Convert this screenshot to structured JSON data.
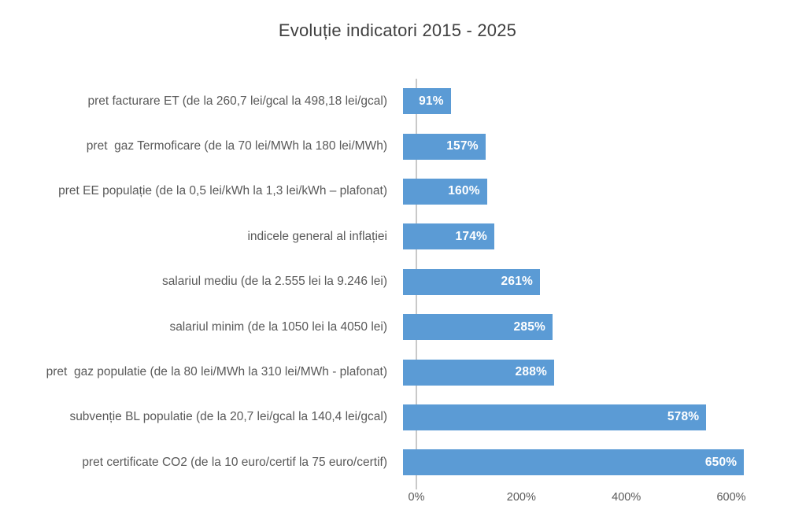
{
  "chart_data": {
    "type": "bar",
    "orientation": "horizontal",
    "title": "Evoluție indicatori 2015 - 2025",
    "categories": [
      "pret facturare ET (de la 260,7 lei/gcal la 498,18 lei/gcal)",
      "pret  gaz Termoficare (de la 70 lei/MWh la 180 lei/MWh)",
      "pret EE populație (de la 0,5 lei/kWh la 1,3 lei/kWh – plafonat)",
      "indicele general al inflației",
      "salariul mediu (de la 2.555 lei la 9.246 lei)",
      "salariul minim (de la 1050 lei la 4050 lei)",
      "pret  gaz populatie (de la 80 lei/MWh la 310 lei/MWh - plafonat)",
      "subvenție BL populatie (de la 20,7 lei/gcal la 140,4 lei/gcal)",
      "pret certificate CO2 (de la 10 euro/certif la 75 euro/certif)"
    ],
    "values": [
      91,
      157,
      160,
      174,
      261,
      285,
      288,
      578,
      650
    ],
    "value_labels": [
      "91%",
      "157%",
      "160%",
      "174%",
      "261%",
      "285%",
      "288%",
      "578%",
      "650%"
    ],
    "xlabel": "",
    "ylabel": "",
    "x_ticks": [
      "0%",
      "200%",
      "400%",
      "600%"
    ],
    "x_tick_values": [
      0,
      200,
      400,
      600
    ],
    "xlim": [
      0,
      694
    ],
    "grid": false,
    "legend": false,
    "bar_color": "#5b9bd5",
    "value_label_color": "#ffffff",
    "title_color": "#404040",
    "category_label_color": "#595959",
    "tick_label_color": "#595959",
    "axis_line_color": "#c9c9c9",
    "background_color": "#ffffff"
  }
}
